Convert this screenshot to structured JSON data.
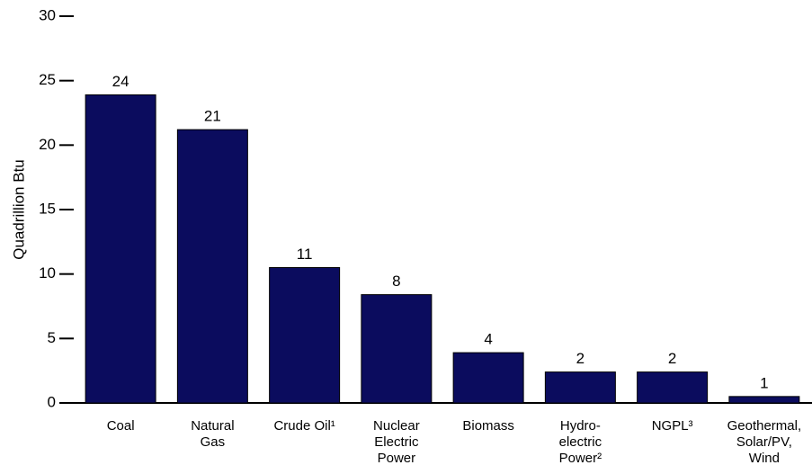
{
  "chart_data": {
    "type": "bar",
    "y_axis_label": "Quadrillion Btu",
    "categories": [
      [
        "Coal"
      ],
      [
        "Natural",
        "Gas"
      ],
      [
        "Crude Oil¹"
      ],
      [
        "Nuclear",
        "Electric",
        "Power"
      ],
      [
        "Biomass"
      ],
      [
        "Hydro-",
        "electric",
        "Power²"
      ],
      [
        "NGPL³"
      ],
      [
        "Geothermal,",
        "Solar/PV,",
        "Wind"
      ]
    ],
    "values": [
      23.9,
      21.2,
      10.5,
      8.4,
      3.9,
      2.4,
      2.4,
      0.5
    ],
    "value_labels": [
      "24",
      "21",
      "11",
      "8",
      "4",
      "2",
      "2",
      "1"
    ],
    "color": "#0b0c5e",
    "ylim": [
      0,
      30
    ],
    "yticks": [
      0,
      5,
      10,
      15,
      20,
      25,
      30
    ],
    "grid": false
  }
}
